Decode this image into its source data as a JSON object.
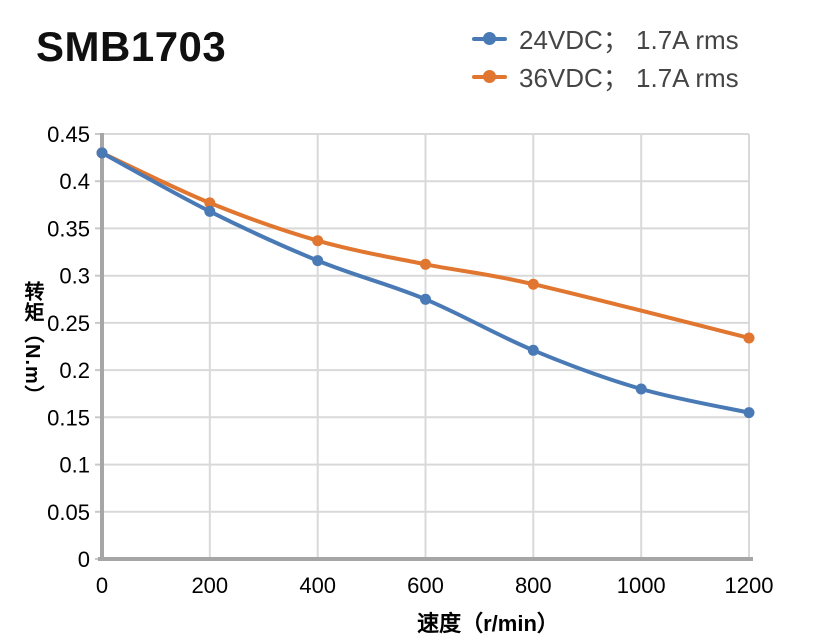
{
  "chart_data": {
    "type": "line",
    "title": "SMB1703",
    "xlabel": "速度（r/min）",
    "ylabel": "转矩（N.m）",
    "xlim": [
      0,
      1200
    ],
    "ylim": [
      0,
      0.45
    ],
    "x_ticks": [
      0,
      200,
      400,
      600,
      800,
      1000,
      1200
    ],
    "y_ticks": [
      0,
      0.05,
      0.1,
      0.15,
      0.2,
      0.25,
      0.3,
      0.35,
      0.4,
      0.45
    ],
    "grid": true,
    "legend_position": "top-right",
    "line_style": "smooth",
    "series": [
      {
        "name": "24VDC； 1.7A rms",
        "color": "#4a7ab5",
        "x": [
          0,
          200,
          400,
          600,
          800,
          1000,
          1200
        ],
        "values": [
          0.43,
          0.368,
          0.316,
          0.275,
          0.221,
          0.18,
          0.155
        ]
      },
      {
        "name": "36VDC； 1.7A rms",
        "color": "#e0762f",
        "x": [
          0,
          200,
          400,
          600,
          800,
          1200
        ],
        "values": [
          0.43,
          0.377,
          0.337,
          0.312,
          0.291,
          0.234
        ]
      }
    ],
    "colors": {
      "gridline": "#d9d9d9",
      "axis_line": "#a6a6a6",
      "tick_stub": "#c9c9c9",
      "tick_text": "#000000",
      "legend_text": "#454545",
      "title_text": "#101010"
    }
  }
}
